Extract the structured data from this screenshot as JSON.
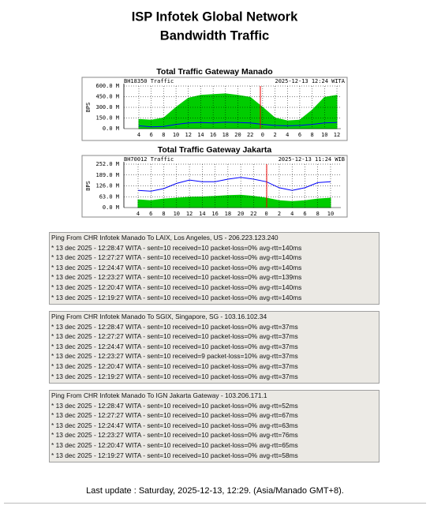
{
  "header": {
    "title": "ISP Infotek Global Network",
    "subtitle": "Bandwidth Traffic"
  },
  "chart_data": [
    {
      "type": "area",
      "title": "Total Traffic Gateway Manado",
      "header_left": "BH18350 Traffic",
      "header_right": "2025-12-13 12:24 WITA",
      "y_label": "BPS",
      "categories": [
        4,
        6,
        8,
        10,
        12,
        14,
        16,
        18,
        20,
        22,
        0,
        2,
        4,
        6,
        8,
        10,
        12
      ],
      "ylim": [
        0,
        600
      ],
      "yticks": [
        {
          "value": 0,
          "label": "0.0 M"
        },
        {
          "value": 150,
          "label": "150.0 M"
        },
        {
          "value": 300,
          "label": "300.0 M"
        },
        {
          "value": 450,
          "label": "450.0 M"
        },
        {
          "value": 600,
          "label": "600.0 M"
        }
      ],
      "grid": true,
      "series": [
        {
          "color": "#00cc00",
          "values": [
            130,
            120,
            150,
            300,
            430,
            470,
            480,
            490,
            470,
            440,
            300,
            150,
            110,
            120,
            260,
            440,
            470
          ]
        },
        {
          "color": "#0000ff",
          "values": [
            40,
            25,
            30,
            60,
            80,
            85,
            80,
            90,
            85,
            80,
            60,
            45,
            40,
            45,
            60,
            80,
            85
          ]
        }
      ]
    },
    {
      "type": "area",
      "title": "Total Traffic Gateway Jakarta",
      "header_left": "BH70012 Traffic",
      "header_right": "2025-12-13 11:24 WIB",
      "y_label": "BPS",
      "categories": [
        4,
        6,
        8,
        10,
        12,
        14,
        16,
        18,
        20,
        22,
        0,
        2,
        4,
        6,
        8,
        10
      ],
      "ylim": [
        0,
        252
      ],
      "yticks": [
        {
          "value": 0,
          "label": "0.0 M"
        },
        {
          "value": 63,
          "label": "63.0 M"
        },
        {
          "value": 126,
          "label": "126.0 M"
        },
        {
          "value": 189,
          "label": "189.0 M"
        },
        {
          "value": 252,
          "label": "252.0 M"
        }
      ],
      "grid": true,
      "series": [
        {
          "color": "#00cc00",
          "values": [
            45,
            40,
            50,
            55,
            60,
            62,
            65,
            70,
            72,
            65,
            55,
            40,
            35,
            40,
            50,
            55
          ]
        },
        {
          "color": "#0000ff",
          "values": [
            100,
            95,
            110,
            140,
            160,
            150,
            150,
            165,
            175,
            165,
            150,
            115,
            100,
            115,
            145,
            150
          ]
        }
      ]
    }
  ],
  "pings": [
    {
      "title": "Ping From CHR Infotek Manado To LAIX, Los Angeles, US - 206.223.123.240",
      "lines": [
        "* 13 dec 2025 - 12:28:47 WITA -  sent=10 received=10 packet-loss=0% avg-rtt=140ms",
        "* 13 dec 2025 - 12:27:27 WITA -  sent=10 received=10 packet-loss=0% avg-rtt=140ms",
        "* 13 dec 2025 - 12:24:47 WITA -  sent=10 received=10 packet-loss=0% avg-rtt=140ms",
        "* 13 dec 2025 - 12:23:27 WITA -  sent=10 received=10 packet-loss=0% avg-rtt=139ms",
        "* 13 dec 2025 - 12:20:47 WITA -  sent=10 received=10 packet-loss=0% avg-rtt=140ms",
        "* 13 dec 2025 - 12:19:27 WITA -  sent=10 received=10 packet-loss=0% avg-rtt=140ms",
        "* 13 dec 2025 - 12:16:47 WITA -  sent=10 received=10 packet-loss=0% avg-rtt=139ms"
      ]
    },
    {
      "title": "Ping From CHR Infotek Manado To SGIX, Singapore, SG - 103.16.102.34",
      "lines": [
        "* 13 dec 2025 - 12:28:47 WITA -  sent=10 received=10 packet-loss=0% avg-rtt=37ms",
        "* 13 dec 2025 - 12:27:27 WITA -  sent=10 received=10 packet-loss=0% avg-rtt=37ms",
        "* 13 dec 2025 - 12:24:47 WITA -  sent=10 received=10 packet-loss=0% avg-rtt=37ms",
        "* 13 dec 2025 - 12:23:27 WITA -  sent=10 received=9 packet-loss=10% avg-rtt=37ms",
        "* 13 dec 2025 - 12:20:47 WITA -  sent=10 received=10 packet-loss=0% avg-rtt=37ms",
        "* 13 dec 2025 - 12:19:27 WITA -  sent=10 received=10 packet-loss=0% avg-rtt=37ms",
        "* 13 dec 2025 - 12:16:47 WITA -  sent=10 received=10 packet-loss=0% avg-rtt=37ms"
      ]
    },
    {
      "title": "Ping From CHR Infotek Manado To IGN Jakarta Gateway - 103.206.171.1",
      "lines": [
        "* 13 dec 2025 - 12:28:47 WITA -  sent=10 received=10 packet-loss=0% avg-rtt=52ms",
        "* 13 dec 2025 - 12:27:27 WITA -  sent=10 received=10 packet-loss=0% avg-rtt=67ms",
        "* 13 dec 2025 - 12:24:47 WITA -  sent=10 received=10 packet-loss=0% avg-rtt=63ms",
        "* 13 dec 2025 - 12:23:27 WITA -  sent=10 received=10 packet-loss=0% avg-rtt=76ms",
        "* 13 dec 2025 - 12:20:47 WITA -  sent=10 received=10 packet-loss=0% avg-rtt=65ms",
        "* 13 dec 2025 - 12:19:27 WITA -  sent=10 received=10 packet-loss=0% avg-rtt=58ms",
        "* 13 dec 2025 - 12:16:47 WITA -  sent=10 received=9 packet-loss=10% avg-rtt=72ms"
      ]
    }
  ],
  "footer": "Last update : Saturday, 2025-12-13, 12:29. (Asia/Manado GMT+8)."
}
